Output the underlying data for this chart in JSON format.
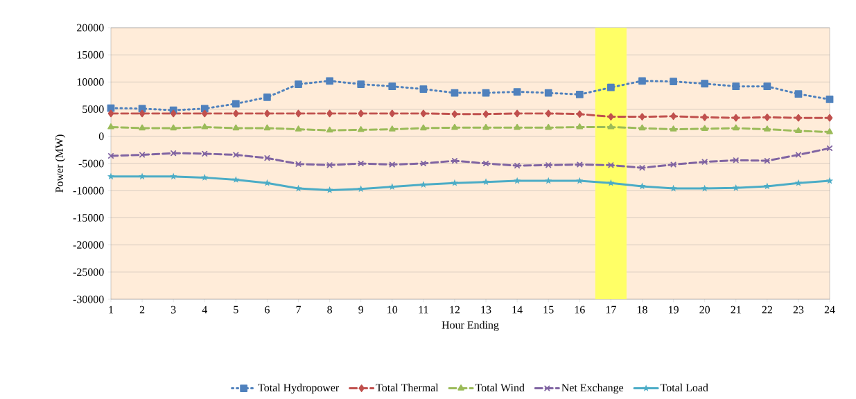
{
  "chart_data": {
    "type": "line",
    "xlabel": "Hour Ending",
    "ylabel": "Power (MW)",
    "x": [
      1,
      2,
      3,
      4,
      5,
      6,
      7,
      8,
      9,
      10,
      11,
      12,
      13,
      14,
      15,
      16,
      17,
      18,
      19,
      20,
      21,
      22,
      23,
      24
    ],
    "xlim": [
      1,
      24
    ],
    "xticks": [
      1,
      2,
      3,
      4,
      5,
      6,
      7,
      8,
      9,
      10,
      11,
      12,
      13,
      14,
      15,
      16,
      17,
      18,
      19,
      20,
      21,
      22,
      23,
      24
    ],
    "ylim": [
      -30000,
      20000
    ],
    "yticks": [
      -30000,
      -25000,
      -20000,
      -15000,
      -10000,
      -5000,
      0,
      5000,
      10000,
      15000,
      20000
    ],
    "grid": "y",
    "legend": "bottom",
    "bands": [
      {
        "axis": "x",
        "from": 16.5,
        "to": 17.5,
        "color": "#ffff66"
      }
    ],
    "series": [
      {
        "name": "Total Hydropower",
        "color": "#4f81bd",
        "marker": "square",
        "line_style": "dotted",
        "values": [
          5200,
          5100,
          4800,
          5100,
          6000,
          7200,
          9600,
          10200,
          9600,
          9200,
          8700,
          8000,
          8000,
          8200,
          8000,
          7700,
          9000,
          10200,
          10100,
          9700,
          9200,
          9200,
          7800,
          6800
        ]
      },
      {
        "name": "Total Thermal",
        "color": "#c0504d",
        "marker": "diamond",
        "line_style": "dashed",
        "values": [
          4200,
          4200,
          4200,
          4200,
          4200,
          4200,
          4200,
          4200,
          4200,
          4200,
          4200,
          4100,
          4100,
          4200,
          4200,
          4100,
          3600,
          3600,
          3700,
          3500,
          3400,
          3500,
          3400,
          3400
        ]
      },
      {
        "name": "Total Wind",
        "color": "#9bbb59",
        "marker": "triangle",
        "line_style": "dashed",
        "values": [
          1700,
          1500,
          1500,
          1700,
          1500,
          1500,
          1300,
          1100,
          1200,
          1300,
          1500,
          1600,
          1600,
          1600,
          1600,
          1700,
          1700,
          1500,
          1300,
          1400,
          1500,
          1300,
          1000,
          800
        ]
      },
      {
        "name": "Net Exchange",
        "color": "#8064a2",
        "marker": "cross",
        "line_style": "dashed",
        "values": [
          -3600,
          -3400,
          -3100,
          -3200,
          -3400,
          -4000,
          -5100,
          -5300,
          -5000,
          -5200,
          -5000,
          -4500,
          -5000,
          -5400,
          -5300,
          -5200,
          -5300,
          -5800,
          -5200,
          -4700,
          -4400,
          -4500,
          -3400,
          -2200
        ]
      },
      {
        "name": "Total Load",
        "color": "#4bacc6",
        "marker": "star",
        "line_style": "solid",
        "values": [
          -7400,
          -7400,
          -7400,
          -7600,
          -8000,
          -8600,
          -9600,
          -9900,
          -9700,
          -9300,
          -8900,
          -8600,
          -8400,
          -8200,
          -8200,
          -8200,
          -8600,
          -9200,
          -9600,
          -9600,
          -9500,
          -9200,
          -8600,
          -8200
        ]
      }
    ]
  }
}
